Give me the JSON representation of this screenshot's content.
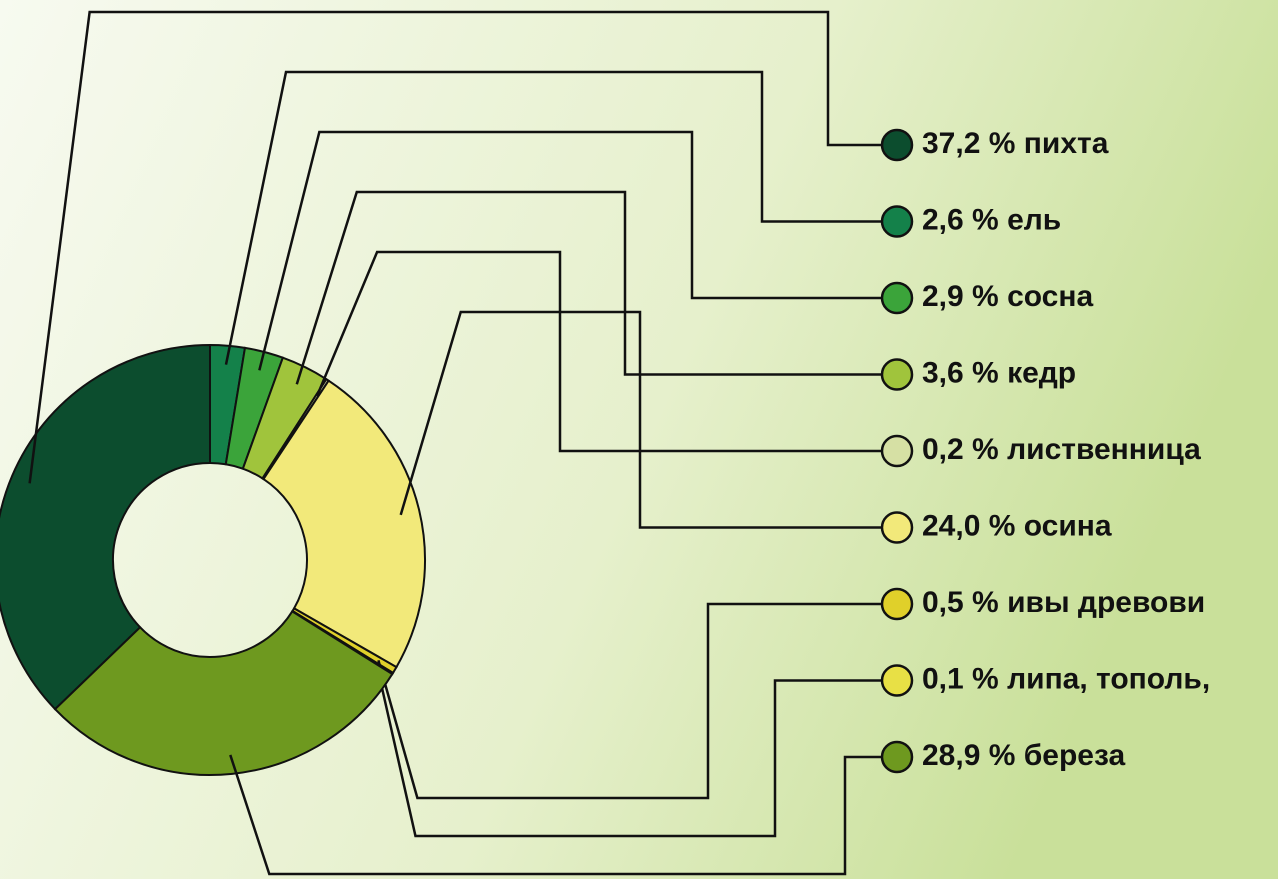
{
  "chart_data": {
    "type": "pie",
    "donut": true,
    "categories": [
      "пихта",
      "ель",
      "сосна",
      "кедр",
      "лиственница",
      "осина",
      "ивы древови",
      "липа, тополь,",
      "береза"
    ],
    "values": [
      37.2,
      2.6,
      2.9,
      3.6,
      0.2,
      24.0,
      0.5,
      0.1,
      28.9
    ],
    "value_labels": [
      "37,2 %",
      "2,6 %",
      "2,9 %",
      "3,6 %",
      "0,2 %",
      "24,0 %",
      "0,5 %",
      "0,1 %",
      "28,9 %"
    ],
    "colors": [
      "#0c4d2e",
      "#14814a",
      "#3ba43a",
      "#a0c43c",
      "#d6e0a4",
      "#f2e97a",
      "#e0d02a",
      "#e8e045",
      "#6e991f"
    ]
  }
}
